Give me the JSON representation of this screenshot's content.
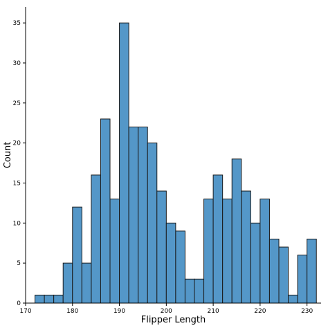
{
  "chart_data": {
    "type": "bar",
    "subtype": "histogram",
    "xlabel": "Flipper Length",
    "ylabel": "Count",
    "xlim": [
      170,
      233
    ],
    "ylim": [
      0,
      37
    ],
    "bin_width": 2,
    "bins": [
      {
        "start": 172,
        "end": 174,
        "count": 1
      },
      {
        "start": 174,
        "end": 176,
        "count": 1
      },
      {
        "start": 176,
        "end": 178,
        "count": 1
      },
      {
        "start": 178,
        "end": 180,
        "count": 5
      },
      {
        "start": 180,
        "end": 182,
        "count": 12
      },
      {
        "start": 182,
        "end": 184,
        "count": 5
      },
      {
        "start": 184,
        "end": 186,
        "count": 16
      },
      {
        "start": 186,
        "end": 188,
        "count": 23
      },
      {
        "start": 188,
        "end": 190,
        "count": 13
      },
      {
        "start": 190,
        "end": 192,
        "count": 35
      },
      {
        "start": 192,
        "end": 194,
        "count": 22
      },
      {
        "start": 194,
        "end": 196,
        "count": 22
      },
      {
        "start": 196,
        "end": 198,
        "count": 20
      },
      {
        "start": 198,
        "end": 200,
        "count": 14
      },
      {
        "start": 200,
        "end": 202,
        "count": 10
      },
      {
        "start": 202,
        "end": 204,
        "count": 9
      },
      {
        "start": 204,
        "end": 206,
        "count": 3
      },
      {
        "start": 206,
        "end": 208,
        "count": 3
      },
      {
        "start": 208,
        "end": 210,
        "count": 13
      },
      {
        "start": 210,
        "end": 212,
        "count": 16
      },
      {
        "start": 212,
        "end": 214,
        "count": 13
      },
      {
        "start": 214,
        "end": 216,
        "count": 18
      },
      {
        "start": 216,
        "end": 218,
        "count": 14
      },
      {
        "start": 218,
        "end": 220,
        "count": 10
      },
      {
        "start": 220,
        "end": 222,
        "count": 13
      },
      {
        "start": 222,
        "end": 224,
        "count": 8
      },
      {
        "start": 224,
        "end": 226,
        "count": 7
      },
      {
        "start": 226,
        "end": 228,
        "count": 1
      },
      {
        "start": 228,
        "end": 230,
        "count": 6
      },
      {
        "start": 230,
        "end": 232,
        "count": 8
      }
    ],
    "x_ticks": [
      170,
      180,
      190,
      200,
      210,
      220,
      230
    ],
    "y_ticks": [
      0,
      5,
      10,
      15,
      20,
      25,
      30,
      35
    ],
    "bar_color": "#5497c8",
    "edge_color": "#1a1a1a",
    "grid": false
  }
}
